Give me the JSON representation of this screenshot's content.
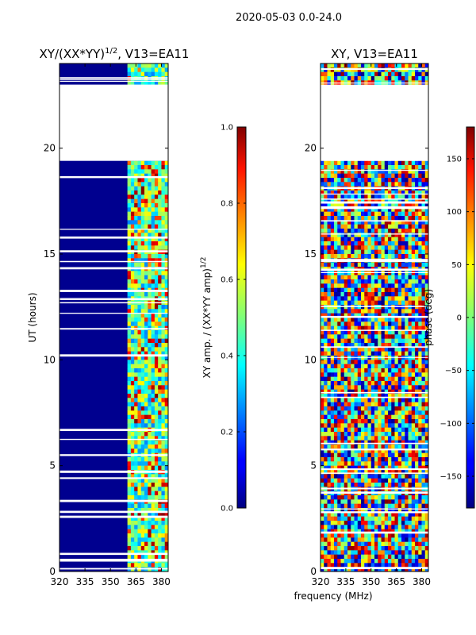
{
  "suptitle": "2020-05-03 0.0-24.0",
  "xlabel_shared": "frequency (MHz)",
  "chart_data": [
    {
      "type": "heatmap",
      "title_main": "XY/(XX*YY)",
      "title_sup": "1/2",
      "title_tail": ", V13=EA11",
      "xlabel": "frequency (MHz)",
      "ylabel": "UT (hours)",
      "xlim": [
        320,
        384
      ],
      "ylim": [
        0,
        24
      ],
      "x_ticks": [
        320,
        335,
        350,
        365,
        380
      ],
      "y_ticks": [
        0,
        5,
        10,
        15,
        20
      ],
      "value_range": [
        0.0,
        1.0
      ],
      "colormap": "jet",
      "gap_hours": [
        [
          19.4,
          23.0
        ]
      ],
      "colorbar": {
        "label_main": "XY amp. / (XX*YY amp)",
        "label_sup": "1/2",
        "range": [
          0.0,
          1.0
        ],
        "ticks": [
          "0.0",
          "0.2",
          "0.4",
          "0.6",
          "0.8",
          "1.0"
        ]
      }
    },
    {
      "type": "heatmap",
      "title": "XY, V13=EA11",
      "xlabel": "frequency (MHz)",
      "ylabel": "",
      "xlim": [
        320,
        384
      ],
      "ylim": [
        0,
        24
      ],
      "x_ticks": [
        320,
        335,
        350,
        365,
        380
      ],
      "y_ticks": [
        0,
        5,
        10,
        15,
        20
      ],
      "value_range": [
        -180,
        180
      ],
      "colormap": "jet",
      "gap_hours": [
        [
          19.4,
          23.0
        ]
      ],
      "colorbar": {
        "label": "phase (deg)",
        "range": [
          -180,
          180
        ],
        "ticks": [
          "-150",
          "-100",
          "-50",
          "0",
          "50",
          "100",
          "150"
        ]
      }
    }
  ]
}
